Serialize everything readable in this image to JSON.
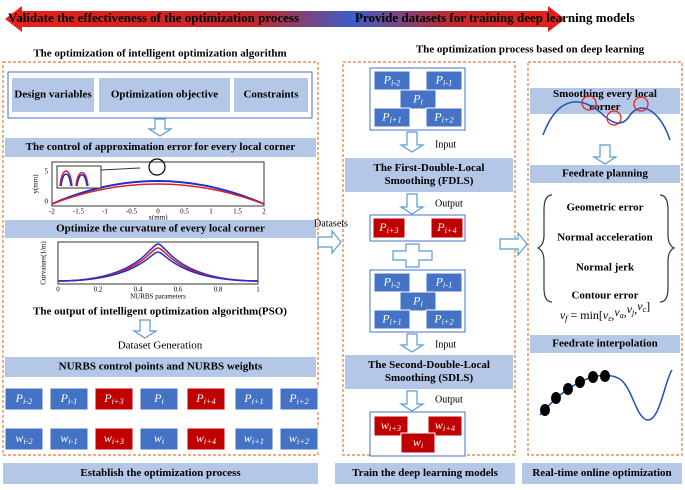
{
  "header": {
    "left": "Validate the effectiveness of the optimization process",
    "right": "Provide datasets for training deep learning models"
  },
  "left_panel": {
    "title": "The optimization of intelligent optimization algorithm",
    "inputs": [
      "Design variables",
      "Optimization objective",
      "Constraints"
    ],
    "error_band": "The control of approximation error for every local corner",
    "plot1": {
      "y_label": "y(mm)",
      "x_label": "x(mm)",
      "xticks": [
        "-2",
        "-1.5",
        "-1",
        "-0.5",
        "0",
        "0.5",
        "1",
        "1.5",
        "2"
      ],
      "yticks": [
        "0",
        "5"
      ]
    },
    "curvature_band": "Optimize the curvature of every local corner",
    "plot2": {
      "y_label": "Curvature(1/m)",
      "x_label": "NURBS parameters",
      "xticks": [
        "0",
        "0.2",
        "0.4",
        "0.6",
        "0.8",
        "1"
      ]
    },
    "pso_output": "The output of intelligent optimization algorithm(PSO)",
    "dataset_generation": "Dataset Generation",
    "nurbs_band": "NURBS control points and NURBS weights",
    "points": [
      {
        "base": "P",
        "sub": "i-2"
      },
      {
        "base": "P",
        "sub": "i-1"
      },
      {
        "base": "P",
        "sub": "i+3"
      },
      {
        "base": "P",
        "sub": "i"
      },
      {
        "base": "P",
        "sub": "i+4"
      },
      {
        "base": "P",
        "sub": "i+1"
      },
      {
        "base": "P",
        "sub": "i+2"
      }
    ],
    "weights": [
      {
        "base": "w",
        "sub": "i-2"
      },
      {
        "base": "w",
        "sub": "i-1"
      },
      {
        "base": "w",
        "sub": "i+3"
      },
      {
        "base": "w",
        "sub": "i"
      },
      {
        "base": "w",
        "sub": "i+4"
      },
      {
        "base": "w",
        "sub": "i+1"
      },
      {
        "base": "w",
        "sub": "i+2"
      }
    ],
    "footer": "Establish the optimization process"
  },
  "datasets_label": "Datasets",
  "middle_panel": {
    "title": "The optimization process based on deep learning",
    "grid1": [
      {
        "base": "P",
        "sub": "i-2"
      },
      {
        "base": "P",
        "sub": "i-1"
      },
      {
        "base": "P",
        "sub": "i"
      },
      {
        "base": "P",
        "sub": "i+1"
      },
      {
        "base": "P",
        "sub": "i+2"
      }
    ],
    "input1": "Input",
    "fdls": [
      "The First-Double-Local",
      "Smoothing (FDLS)"
    ],
    "output1": "Output",
    "fdls_out": [
      {
        "base": "P",
        "sub": "i+3"
      },
      {
        "base": "P",
        "sub": "i+4"
      }
    ],
    "grid2": [
      {
        "base": "P",
        "sub": "i-2"
      },
      {
        "base": "P",
        "sub": "i-1"
      },
      {
        "base": "P",
        "sub": "i"
      },
      {
        "base": "P",
        "sub": "i+1"
      },
      {
        "base": "P",
        "sub": "i+2"
      }
    ],
    "input2": "Input",
    "sdls": [
      "The Second-Double-Local",
      "Smoothing (SDLS)"
    ],
    "output2": "Output",
    "sdls_out": [
      {
        "base": "w",
        "sub": "i+3"
      },
      {
        "base": "w",
        "sub": "i+4"
      },
      {
        "base": "w",
        "sub": "i"
      }
    ],
    "footer": "Train the deep learning models"
  },
  "right_panel": {
    "smoothing": [
      "Smoothing every local",
      "corner"
    ],
    "feedrate_planning": "Feedrate planning",
    "constraints": [
      "Geometric error",
      "Normal acceleration",
      "Normal jerk",
      "Contour error"
    ],
    "formula": {
      "lhs": {
        "base": "v",
        "sub": "f"
      },
      "op": "= min[",
      "args": [
        {
          "base": "v",
          "sub": "ε"
        },
        {
          "base": "v",
          "sub": "a"
        },
        {
          "base": "v",
          "sub": "j"
        },
        {
          "base": "v",
          "sub": "c"
        }
      ],
      "separator": ",",
      "close": "]"
    },
    "interpolation": "Feedrate interpolation",
    "footer": "Real-time online optimization"
  }
}
